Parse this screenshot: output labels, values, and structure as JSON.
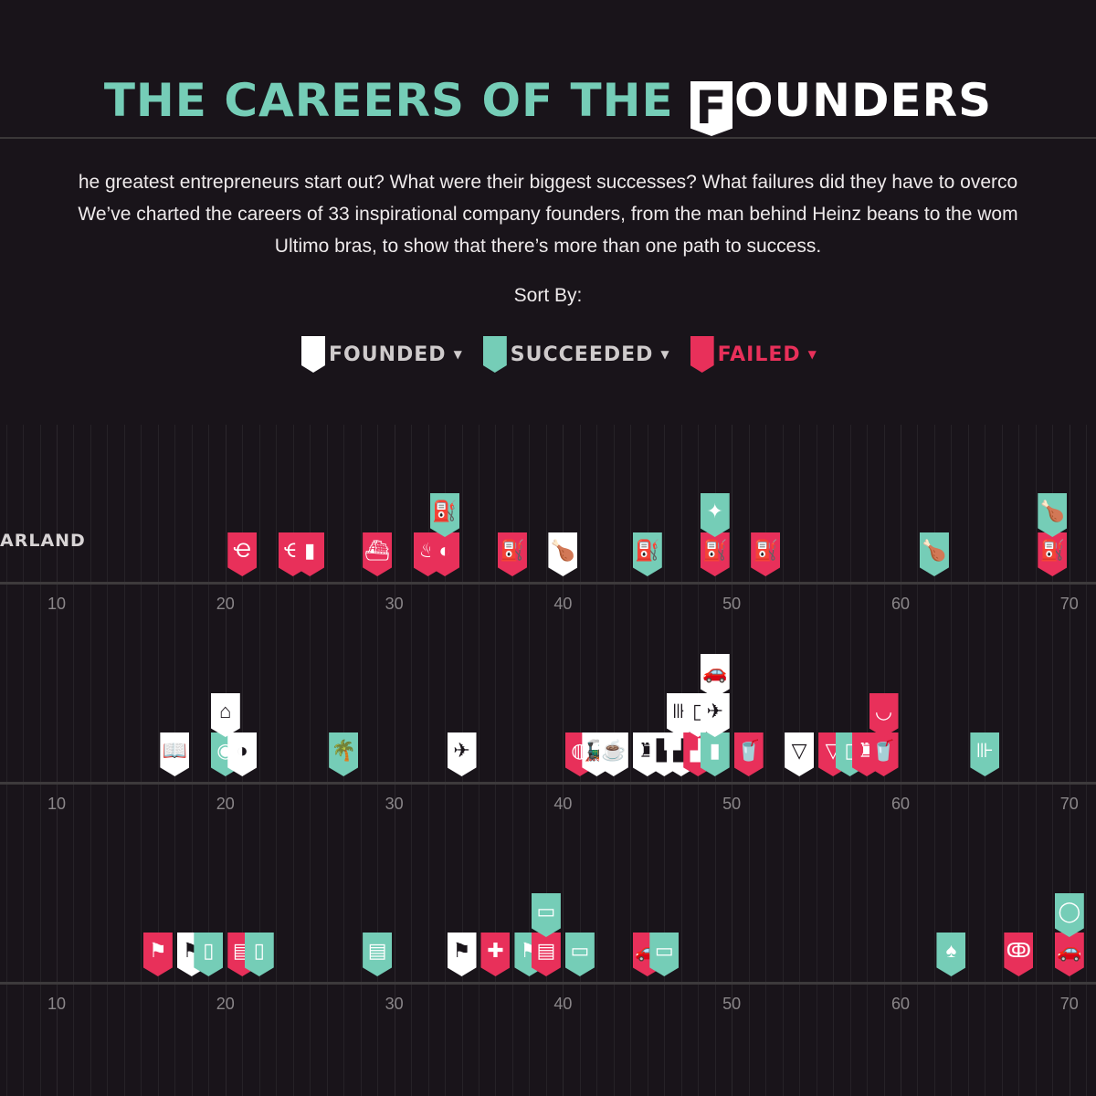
{
  "page": {
    "title_teal": "THE CAREERS OF THE",
    "title_badge": "F",
    "title_white": "OUNDERS",
    "intro_lines": [
      "he greatest entrepreneurs start out? What were their biggest successes? What failures did they have to overco",
      "We’ve charted the careers of 33 inspirational company founders, from the man behind Heinz beans to the wom",
      "Ultimo bras, to show that there’s more than one path to success."
    ],
    "sort_by_label": "Sort By:",
    "sort_buttons": [
      {
        "label": "FOUNDED",
        "color": "#ffffff"
      },
      {
        "label": "SUCCEEDED",
        "color": "#75cdb7"
      },
      {
        "label": "FAILED",
        "color": "#e8305a"
      }
    ],
    "caret": "▼"
  },
  "colors": {
    "founded": "#ffffff",
    "succeeded": "#75cdb7",
    "failed": "#e8305a",
    "background": "#19141a"
  },
  "chart_data": {
    "type": "scatter",
    "x_axis": {
      "ticks": [
        10,
        20,
        30,
        40,
        50,
        60,
        70
      ],
      "range": [
        7,
        72
      ]
    },
    "rows": [
      {
        "label": "ARLAND",
        "events": [
          {
            "age": 21,
            "status": "failed",
            "icon": "ear-icon",
            "glyph": "Ҽ"
          },
          {
            "age": 24,
            "status": "failed",
            "icon": "ear-icon",
            "glyph": "Ҽ"
          },
          {
            "age": 25,
            "status": "failed",
            "icon": "gas-pump-icon",
            "glyph": "▮"
          },
          {
            "age": 29,
            "status": "failed",
            "icon": "ship-icon",
            "glyph": "⛴"
          },
          {
            "age": 32,
            "status": "failed",
            "icon": "fryer-icon",
            "glyph": "♨"
          },
          {
            "age": 33,
            "status": "failed",
            "icon": "tire-icon",
            "glyph": "◐"
          },
          {
            "age": 33,
            "status": "succeeded",
            "icon": "gas-pump-icon",
            "glyph": "⛽",
            "stack": 1
          },
          {
            "age": 37,
            "status": "failed",
            "icon": "gas-pump-icon",
            "glyph": "⛽"
          },
          {
            "age": 40,
            "status": "founded",
            "icon": "chicken-leg-icon",
            "glyph": "🍗"
          },
          {
            "age": 45,
            "status": "succeeded",
            "icon": "gas-pump-icon",
            "glyph": "⛽"
          },
          {
            "age": 49,
            "status": "failed",
            "icon": "gas-pump-icon",
            "glyph": "⛽"
          },
          {
            "age": 49,
            "status": "succeeded",
            "icon": "eagle-icon",
            "glyph": "✦",
            "stack": 1
          },
          {
            "age": 52,
            "status": "failed",
            "icon": "gas-pump-icon",
            "glyph": "⛽"
          },
          {
            "age": 62,
            "status": "succeeded",
            "icon": "chicken-leg-icon",
            "glyph": "🍗"
          },
          {
            "age": 69,
            "status": "failed",
            "icon": "gas-pump-icon",
            "glyph": "⛽"
          },
          {
            "age": 69,
            "status": "succeeded",
            "icon": "chicken-leg-icon",
            "glyph": "🍗",
            "stack": 1
          }
        ]
      },
      {
        "label": "",
        "events": [
          {
            "age": 17,
            "status": "founded",
            "icon": "book-icon",
            "glyph": "📖"
          },
          {
            "age": 20,
            "status": "succeeded",
            "icon": "record-icon",
            "glyph": "◉"
          },
          {
            "age": 20,
            "status": "founded",
            "icon": "shop-icon",
            "glyph": "⌂",
            "stack": 1
          },
          {
            "age": 21,
            "status": "founded",
            "icon": "record-icon",
            "glyph": "◑"
          },
          {
            "age": 27,
            "status": "succeeded",
            "icon": "island-icon",
            "glyph": "🌴"
          },
          {
            "age": 34,
            "status": "founded",
            "icon": "plane-icon",
            "glyph": "✈"
          },
          {
            "age": 41,
            "status": "failed",
            "icon": "vinyl-icon",
            "glyph": "◍"
          },
          {
            "age": 42,
            "status": "founded",
            "icon": "train-icon",
            "glyph": "🚂"
          },
          {
            "age": 43,
            "status": "founded",
            "icon": "cup-icon",
            "glyph": "☕"
          },
          {
            "age": 45,
            "status": "founded",
            "icon": "dress-icon",
            "glyph": "♜"
          },
          {
            "age": 46,
            "status": "founded",
            "icon": "shirt-icon",
            "glyph": "▙"
          },
          {
            "age": 47,
            "status": "founded",
            "icon": "shirt-icon",
            "glyph": "▟"
          },
          {
            "age": 47,
            "status": "founded",
            "icon": "dumbbell-icon",
            "glyph": "⊪",
            "stack": 1
          },
          {
            "age": 48,
            "status": "failed",
            "icon": "shirt-icon",
            "glyph": "▟"
          },
          {
            "age": 48,
            "status": "founded",
            "icon": "phone-icon",
            "glyph": "▯",
            "stack": 1
          },
          {
            "age": 49,
            "status": "succeeded",
            "icon": "bottle-icon",
            "glyph": "▮"
          },
          {
            "age": 49,
            "status": "founded",
            "icon": "plane-icon",
            "glyph": "✈",
            "stack": 1
          },
          {
            "age": 49,
            "status": "founded",
            "icon": "car-icon",
            "glyph": "🚗",
            "stack": 2
          },
          {
            "age": 51,
            "status": "failed",
            "icon": "cup-icon",
            "glyph": "🥤"
          },
          {
            "age": 54,
            "status": "founded",
            "icon": "underwear-icon",
            "glyph": "▽"
          },
          {
            "age": 56,
            "status": "failed",
            "icon": "underwear-icon",
            "glyph": "▽"
          },
          {
            "age": 57,
            "status": "succeeded",
            "icon": "phone-icon",
            "glyph": "▯"
          },
          {
            "age": 58,
            "status": "failed",
            "icon": "dress-icon",
            "glyph": "♜"
          },
          {
            "age": 59,
            "status": "failed",
            "icon": "cup-icon",
            "glyph": "🥤"
          },
          {
            "age": 59,
            "status": "failed",
            "icon": "lips-icon",
            "glyph": "◡",
            "stack": 1
          },
          {
            "age": 65,
            "status": "succeeded",
            "icon": "dumbbell-icon",
            "glyph": "⊪"
          }
        ]
      },
      {
        "label": "",
        "events": [
          {
            "age": 16,
            "status": "failed",
            "icon": "lamp-icon",
            "glyph": "⚑"
          },
          {
            "age": 18,
            "status": "founded",
            "icon": "lamp-icon",
            "glyph": "⚑"
          },
          {
            "age": 19,
            "status": "succeeded",
            "icon": "book-icon",
            "glyph": "▯"
          },
          {
            "age": 21,
            "status": "failed",
            "icon": "box-icon",
            "glyph": "▤"
          },
          {
            "age": 22,
            "status": "succeeded",
            "icon": "book-icon",
            "glyph": "▯"
          },
          {
            "age": 29,
            "status": "succeeded",
            "icon": "box-icon",
            "glyph": "▤"
          },
          {
            "age": 34,
            "status": "founded",
            "icon": "lamp-icon",
            "glyph": "⚑"
          },
          {
            "age": 36,
            "status": "failed",
            "icon": "bandage-icon",
            "glyph": "✚"
          },
          {
            "age": 38,
            "status": "succeeded",
            "icon": "lamp-icon",
            "glyph": "⚑"
          },
          {
            "age": 39,
            "status": "failed",
            "icon": "box-icon",
            "glyph": "▤"
          },
          {
            "age": 39,
            "status": "succeeded",
            "icon": "laptop-icon",
            "glyph": "▭",
            "stack": 1
          },
          {
            "age": 41,
            "status": "succeeded",
            "icon": "laptop-icon",
            "glyph": "▭"
          },
          {
            "age": 45,
            "status": "failed",
            "icon": "car-icon",
            "glyph": "🚗"
          },
          {
            "age": 46,
            "status": "succeeded",
            "icon": "laptop-icon",
            "glyph": "▭"
          },
          {
            "age": 63,
            "status": "succeeded",
            "icon": "spade-icon",
            "glyph": "♠"
          },
          {
            "age": 67,
            "status": "failed",
            "icon": "tricycle-icon",
            "glyph": "ↂ"
          },
          {
            "age": 70,
            "status": "failed",
            "icon": "car-icon",
            "glyph": "🚗"
          },
          {
            "age": 70,
            "status": "succeeded",
            "icon": "ring-icon",
            "glyph": "◯",
            "stack": 1
          }
        ]
      }
    ]
  }
}
